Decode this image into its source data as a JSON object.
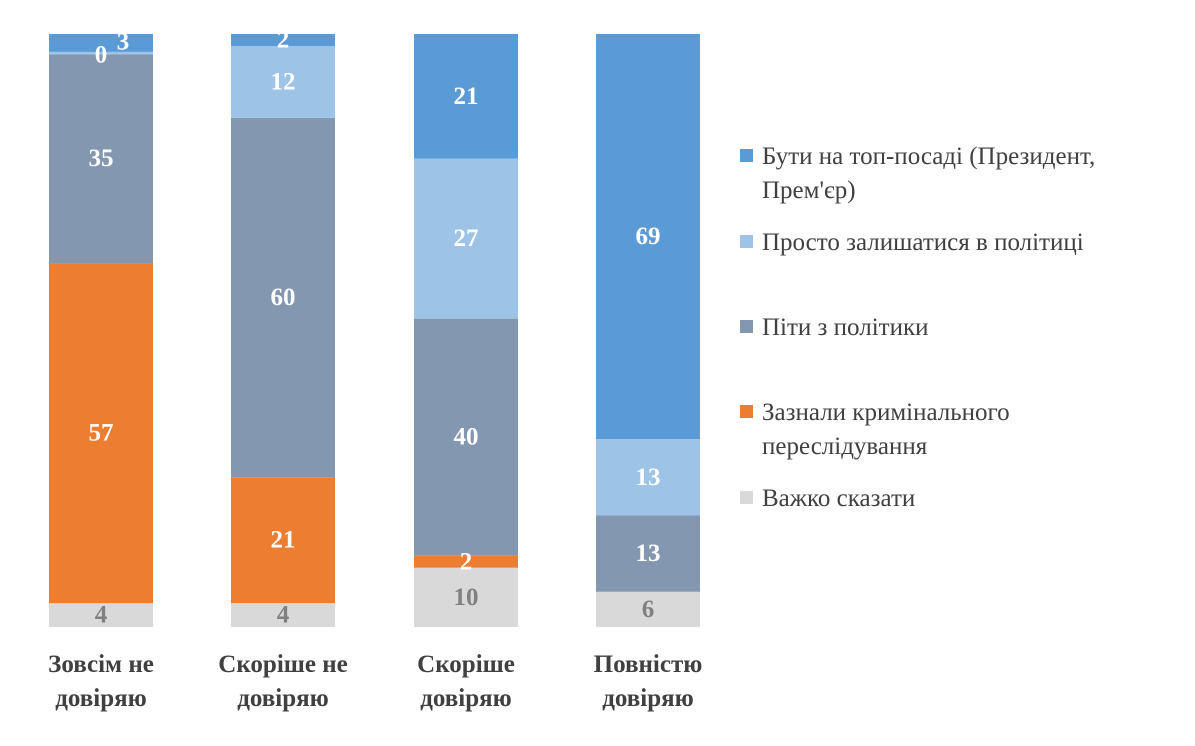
{
  "chart_data": {
    "type": "bar",
    "stacked": true,
    "percent_scale": true,
    "categories": [
      [
        "Зовсім не",
        "довіряю"
      ],
      [
        "Скоріше не",
        "довіряю"
      ],
      [
        "Скоріше",
        "довіряю"
      ],
      [
        "Повністю",
        "довіряю"
      ]
    ],
    "series": [
      {
        "name": "Важко сказати",
        "color": "#D9D9D9",
        "label_color": "#808080",
        "label_bold": false,
        "values": [
          4,
          4,
          10,
          6
        ],
        "labels": [
          "4",
          "4",
          "10",
          "6"
        ]
      },
      {
        "name": "Зазнали кримінального переслідування",
        "color": "#ED7D31",
        "label_color": "#FFFFFF",
        "label_bold": true,
        "values": [
          57,
          21,
          2,
          0
        ],
        "labels": [
          "57",
          "21",
          "2",
          null
        ]
      },
      {
        "name": "Піти з політики",
        "color": "#8497B0",
        "label_color": "#FFFFFF",
        "label_bold": true,
        "values": [
          35,
          60,
          40,
          13
        ],
        "labels": [
          "35",
          "60",
          "40",
          "13"
        ]
      },
      {
        "name": "Просто залишатися в політиці",
        "color": "#9DC3E6",
        "label_color": "#FFFFFF",
        "label_bold": true,
        "values": [
          0.4,
          12,
          27,
          13
        ],
        "labels": [
          "0",
          "12",
          "27",
          "13"
        ]
      },
      {
        "name": "Бути на топ-посаді (Президент, Прем'єр)",
        "color": "#5B9BD5",
        "label_color": "#FFFFFF",
        "label_bold": true,
        "values": [
          3,
          2,
          21,
          69
        ],
        "labels": [
          "3",
          "2",
          "21",
          "69"
        ]
      }
    ],
    "legend_order": [
      4,
      3,
      2,
      1,
      0
    ],
    "legend_lines": [
      [
        "Бути на топ-посаді (Президент,",
        "Прем'єр)"
      ],
      [
        "Просто залишатися в політиці"
      ],
      [
        "Піти з політики"
      ],
      [
        "Зазнали кримінального",
        "переслідування"
      ],
      [
        "Важко сказати"
      ]
    ],
    "legend_position": "right",
    "title": "",
    "xlabel": "",
    "ylabel": ""
  }
}
